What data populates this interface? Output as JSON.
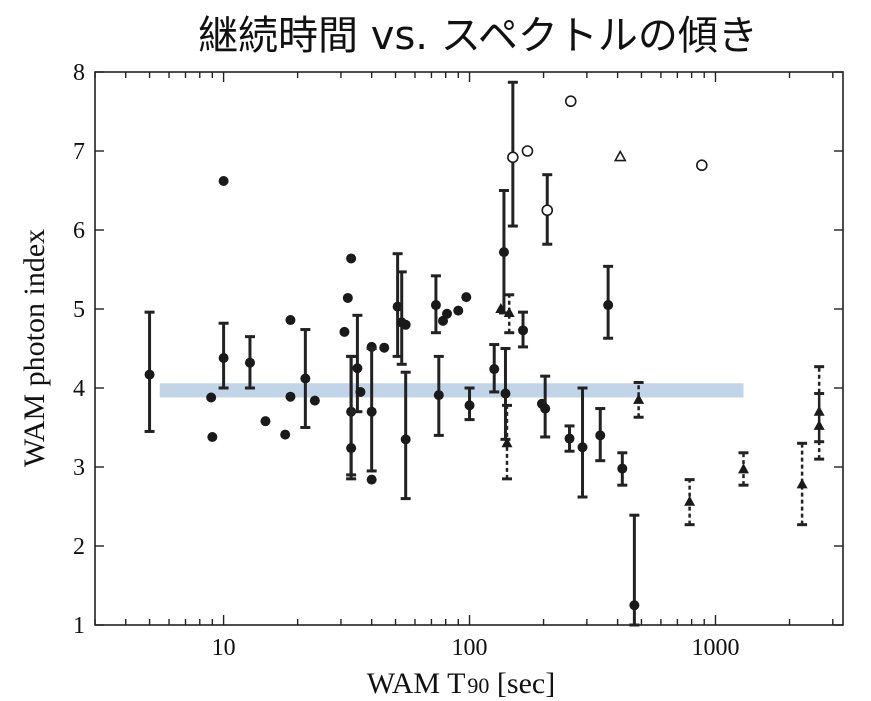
{
  "chart_data": {
    "type": "scatter",
    "title": "継続時間 vs. スペクトルの傾き",
    "xlabel_main": "WAM T",
    "xlabel_sub": "90",
    "xlabel_unit": " [sec]",
    "ylabel": "WAM photon index",
    "xscale": "log",
    "xlim": [
      3,
      3300
    ],
    "ylim": [
      1,
      8
    ],
    "xticks": [
      10,
      100,
      1000
    ],
    "xtick_labels": [
      "10",
      "100",
      "1000"
    ],
    "yticks": [
      1,
      2,
      3,
      4,
      5,
      6,
      7,
      8
    ],
    "ytick_labels": [
      "1",
      "2",
      "3",
      "4",
      "5",
      "6",
      "7",
      "8"
    ],
    "band": {
      "x": [
        5.5,
        1300
      ],
      "y": [
        3.88,
        4.06
      ],
      "color": "#b7cde3"
    },
    "series": [
      {
        "marker": "filled-circle",
        "points": [
          {
            "x": 5,
            "y": 4.17,
            "lo": 3.45,
            "hi": 4.96
          },
          {
            "x": 8.9,
            "y": 3.88
          },
          {
            "x": 9,
            "y": 3.38
          },
          {
            "x": 10,
            "y": 6.62
          },
          {
            "x": 10,
            "y": 4.38,
            "lo": 4.0,
            "hi": 4.82
          },
          {
            "x": 12.8,
            "y": 4.32,
            "lo": 4.0,
            "hi": 4.65
          },
          {
            "x": 14.8,
            "y": 3.58
          },
          {
            "x": 17.8,
            "y": 3.41
          },
          {
            "x": 18.7,
            "y": 4.86
          },
          {
            "x": 18.7,
            "y": 3.89
          },
          {
            "x": 21.5,
            "y": 4.12,
            "lo": 3.5,
            "hi": 4.74
          },
          {
            "x": 23.5,
            "y": 3.84
          },
          {
            "x": 31,
            "y": 4.71
          },
          {
            "x": 32,
            "y": 5.14
          },
          {
            "x": 33,
            "y": 5.64
          },
          {
            "x": 33,
            "y": 3.7,
            "lo": 2.9,
            "hi": 4.4
          },
          {
            "x": 33,
            "y": 3.24,
            "lo": 2.85,
            "hi": 4.4
          },
          {
            "x": 35,
            "y": 4.25,
            "lo": 3.7,
            "hi": 4.92
          },
          {
            "x": 36,
            "y": 3.95
          },
          {
            "x": 40,
            "y": 4.52
          },
          {
            "x": 40,
            "y": 3.7,
            "lo": 2.95,
            "hi": 4.5
          },
          {
            "x": 40,
            "y": 2.84
          },
          {
            "x": 45,
            "y": 4.51
          },
          {
            "x": 51,
            "y": 5.03,
            "lo": 4.4,
            "hi": 5.7
          },
          {
            "x": 53,
            "y": 4.83,
            "lo": 4.3,
            "hi": 5.47
          },
          {
            "x": 55,
            "y": 4.8
          },
          {
            "x": 55,
            "y": 3.35,
            "lo": 2.6,
            "hi": 4.2
          },
          {
            "x": 73,
            "y": 5.05,
            "lo": 4.7,
            "hi": 5.42
          },
          {
            "x": 75,
            "y": 3.91,
            "lo": 3.4,
            "hi": 4.4
          },
          {
            "x": 78,
            "y": 4.85
          },
          {
            "x": 81,
            "y": 4.94
          },
          {
            "x": 90,
            "y": 4.98
          },
          {
            "x": 97,
            "y": 5.15
          },
          {
            "x": 100,
            "y": 3.78,
            "lo": 3.6,
            "hi": 4.0
          },
          {
            "x": 126,
            "y": 4.24,
            "lo": 3.95,
            "hi": 4.55
          },
          {
            "x": 138,
            "y": 5.72,
            "lo": 4.95,
            "hi": 6.5
          },
          {
            "x": 140,
            "y": 3.93,
            "lo": 3.35,
            "hi": 4.5
          },
          {
            "x": 165,
            "y": 4.73,
            "lo": 4.52,
            "hi": 4.96
          },
          {
            "x": 197,
            "y": 3.8
          },
          {
            "x": 203,
            "y": 3.74,
            "lo": 3.38,
            "hi": 4.15
          },
          {
            "x": 255,
            "y": 3.36,
            "lo": 3.2,
            "hi": 3.52
          },
          {
            "x": 288,
            "y": 3.25,
            "lo": 2.62,
            "hi": 4.0
          },
          {
            "x": 340,
            "y": 3.4,
            "lo": 3.08,
            "hi": 3.74
          },
          {
            "x": 366,
            "y": 5.05,
            "lo": 4.63,
            "hi": 5.54
          },
          {
            "x": 418,
            "y": 2.98,
            "lo": 2.77,
            "hi": 3.18
          },
          {
            "x": 468,
            "y": 1.25,
            "lo": 1.0,
            "hi": 2.39
          }
        ]
      },
      {
        "marker": "open-circle",
        "points": [
          {
            "x": 150,
            "y": 6.92,
            "lo": 6.05,
            "hi": 7.87
          },
          {
            "x": 172,
            "y": 7.0
          },
          {
            "x": 207,
            "y": 6.25,
            "lo": 5.82,
            "hi": 6.7
          },
          {
            "x": 258,
            "y": 7.63
          },
          {
            "x": 880,
            "y": 6.82
          }
        ]
      },
      {
        "marker": "filled-triangle",
        "dashed_error_bars": true,
        "points": [
          {
            "x": 134,
            "y": 5.0
          },
          {
            "x": 145,
            "y": 4.95,
            "lo": 4.7,
            "hi": 5.18
          },
          {
            "x": 142,
            "y": 3.3,
            "lo": 2.85,
            "hi": 3.78
          },
          {
            "x": 487,
            "y": 3.85,
            "lo": 3.63,
            "hi": 4.07
          },
          {
            "x": 785,
            "y": 2.56,
            "lo": 2.27,
            "hi": 2.84
          },
          {
            "x": 1300,
            "y": 2.97,
            "lo": 2.77,
            "hi": 3.18
          },
          {
            "x": 2250,
            "y": 2.78,
            "lo": 2.27,
            "hi": 3.3
          },
          {
            "x": 2640,
            "y": 3.7,
            "lo": 3.32,
            "hi": 4.27
          },
          {
            "x": 2640,
            "y": 3.52,
            "lo": 3.1,
            "hi": 3.93
          }
        ]
      },
      {
        "marker": "open-triangle",
        "points": [
          {
            "x": 410,
            "y": 6.93
          }
        ]
      }
    ]
  }
}
